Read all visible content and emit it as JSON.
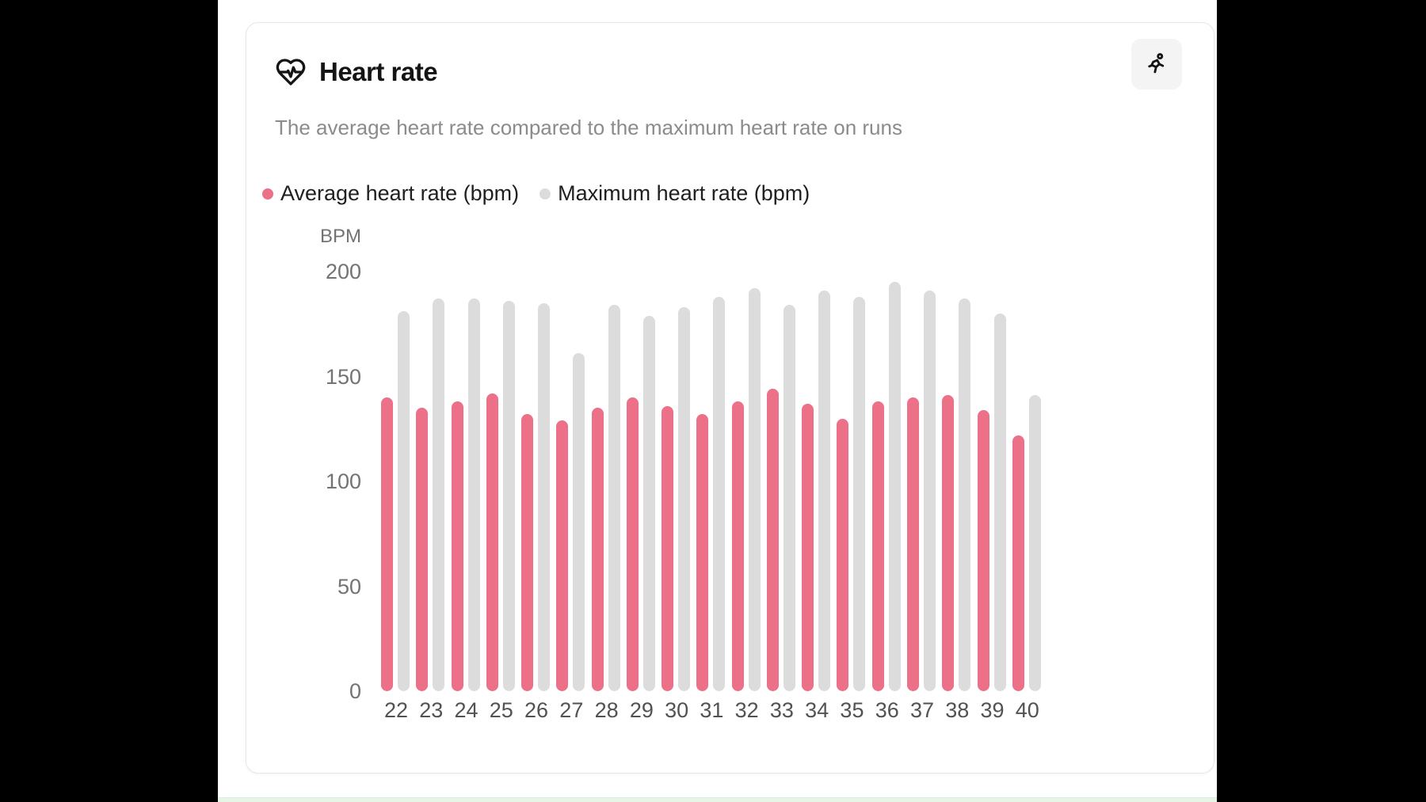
{
  "card": {
    "title": "Heart rate",
    "subtitle": "The average heart rate compared to the maximum heart rate on runs"
  },
  "legend": [
    {
      "label": "Average heart rate (bpm)",
      "color": "#ec7088"
    },
    {
      "label": "Maximum heart rate (bpm)",
      "color": "#dcdcdc"
    }
  ],
  "chart_data": {
    "type": "bar",
    "title": "Heart rate",
    "subtitle": "The average heart rate compared to the maximum heart rate on runs",
    "ylabel": "BPM",
    "xlabel": "",
    "ylim": [
      0,
      200
    ],
    "yticks": [
      200,
      150,
      100,
      50,
      0
    ],
    "grid": false,
    "legend_position": "top",
    "categories": [
      "22",
      "23",
      "24",
      "25",
      "26",
      "27",
      "28",
      "29",
      "30",
      "31",
      "32",
      "33",
      "34",
      "35",
      "36",
      "37",
      "38",
      "39",
      "40"
    ],
    "series": [
      {
        "name": "Average heart rate (bpm)",
        "color": "#ec7088",
        "values": [
          140,
          135,
          138,
          142,
          132,
          129,
          135,
          140,
          136,
          132,
          138,
          144,
          137,
          130,
          138,
          140,
          141,
          134,
          122
        ]
      },
      {
        "name": "Maximum heart rate (bpm)",
        "color": "#dcdcdc",
        "values": [
          181,
          187,
          187,
          186,
          185,
          161,
          184,
          179,
          183,
          188,
          192,
          184,
          191,
          188,
          195,
          191,
          187,
          180,
          141
        ]
      }
    ]
  },
  "colors": {
    "accent_pink": "#ec7088",
    "bar_gray": "#dcdcdc",
    "card_border": "#e7e7e7",
    "button_bg": "#f4f4f5",
    "next_card_edge": "#e7f5e7"
  }
}
